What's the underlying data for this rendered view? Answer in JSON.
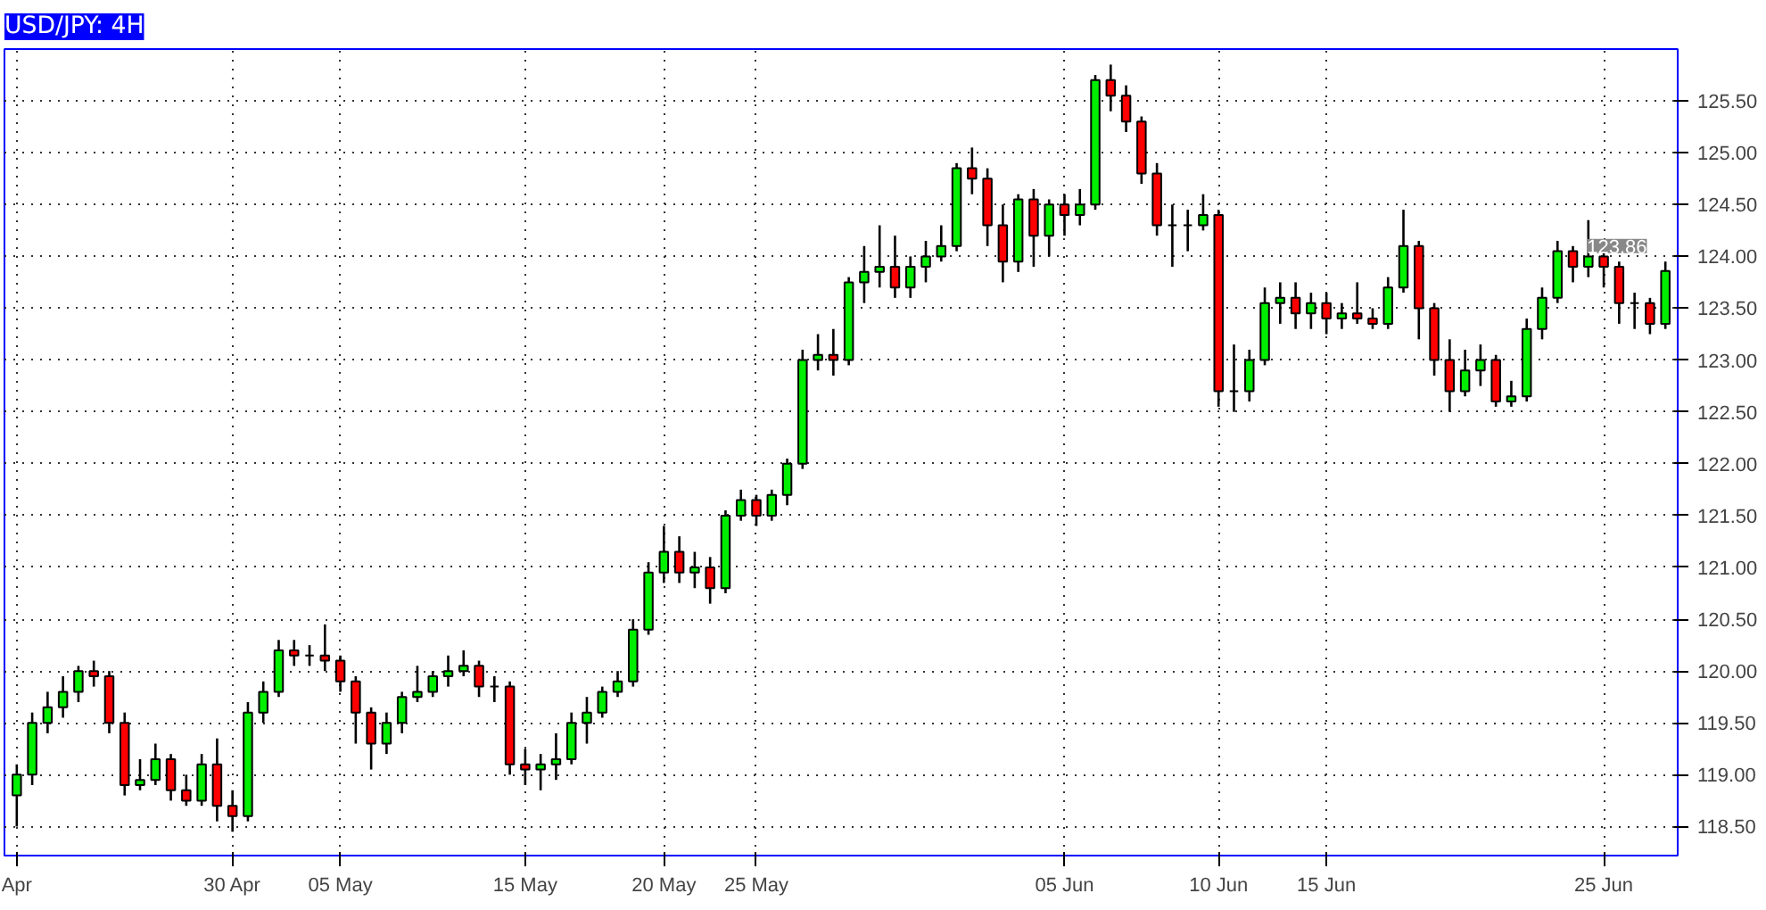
{
  "chart_data": {
    "type": "candlestick",
    "title": "USD/JPY: 4H",
    "categories": [
      "Apr",
      null,
      null,
      null,
      null,
      null,
      null,
      null,
      null,
      null,
      null,
      null,
      null,
      null,
      "30 Apr",
      null,
      null,
      null,
      null,
      null,
      null,
      "05 May",
      null,
      null,
      null,
      null,
      null,
      null,
      null,
      null,
      null,
      null,
      null,
      "15 May",
      null,
      null,
      null,
      null,
      null,
      null,
      null,
      null,
      "20 May",
      null,
      null,
      null,
      null,
      null,
      "25 May",
      null,
      null,
      null,
      null,
      null,
      null,
      null,
      null,
      null,
      null,
      null,
      null,
      null,
      null,
      null,
      null,
      null,
      null,
      null,
      "05 Jun",
      null,
      null,
      null,
      null,
      null,
      null,
      null,
      null,
      null,
      "10 Jun",
      null,
      null,
      null,
      null,
      null,
      null,
      "15 Jun",
      null,
      null,
      null,
      null,
      null,
      null,
      null,
      null,
      null,
      null,
      null,
      null,
      null,
      null,
      null,
      null,
      null,
      "25 Jun",
      null,
      null,
      null,
      null
    ],
    "ohlc": [
      [
        118.8,
        119.1,
        118.5,
        119.0
      ],
      [
        119.0,
        119.6,
        118.9,
        119.5
      ],
      [
        119.5,
        119.8,
        119.4,
        119.65
      ],
      [
        119.65,
        119.95,
        119.55,
        119.8
      ],
      [
        119.8,
        120.05,
        119.7,
        120.0
      ],
      [
        120.0,
        120.1,
        119.85,
        119.95
      ],
      [
        119.95,
        120.0,
        119.4,
        119.5
      ],
      [
        119.5,
        119.6,
        118.8,
        118.9
      ],
      [
        118.9,
        119.15,
        118.85,
        118.95
      ],
      [
        118.95,
        119.3,
        118.9,
        119.15
      ],
      [
        119.15,
        119.2,
        118.75,
        118.85
      ],
      [
        118.85,
        119.0,
        118.7,
        118.75
      ],
      [
        118.75,
        119.2,
        118.7,
        119.1
      ],
      [
        119.1,
        119.35,
        118.55,
        118.7
      ],
      [
        118.7,
        118.85,
        118.45,
        118.6
      ],
      [
        118.6,
        119.7,
        118.55,
        119.6
      ],
      [
        119.6,
        119.9,
        119.5,
        119.8
      ],
      [
        119.8,
        120.3,
        119.75,
        120.2
      ],
      [
        120.2,
        120.3,
        120.05,
        120.15
      ],
      [
        120.15,
        120.25,
        120.05,
        120.15
      ],
      [
        120.15,
        120.45,
        120.0,
        120.1
      ],
      [
        120.1,
        120.15,
        119.8,
        119.9
      ],
      [
        119.9,
        119.95,
        119.3,
        119.6
      ],
      [
        119.6,
        119.65,
        119.05,
        119.3
      ],
      [
        119.3,
        119.6,
        119.2,
        119.5
      ],
      [
        119.5,
        119.8,
        119.4,
        119.75
      ],
      [
        119.75,
        120.05,
        119.7,
        119.8
      ],
      [
        119.8,
        120.0,
        119.75,
        119.95
      ],
      [
        119.95,
        120.15,
        119.85,
        120.0
      ],
      [
        120.0,
        120.2,
        119.95,
        120.05
      ],
      [
        120.05,
        120.1,
        119.75,
        119.85
      ],
      [
        119.85,
        119.95,
        119.7,
        119.85
      ],
      [
        119.85,
        119.9,
        119.0,
        119.1
      ],
      [
        119.1,
        119.25,
        118.9,
        119.05
      ],
      [
        119.05,
        119.2,
        118.85,
        119.1
      ],
      [
        119.1,
        119.4,
        118.95,
        119.15
      ],
      [
        119.15,
        119.6,
        119.1,
        119.5
      ],
      [
        119.5,
        119.75,
        119.3,
        119.6
      ],
      [
        119.6,
        119.85,
        119.55,
        119.8
      ],
      [
        119.8,
        120.0,
        119.75,
        119.9
      ],
      [
        119.9,
        120.5,
        119.85,
        120.4
      ],
      [
        120.4,
        121.05,
        120.35,
        120.95
      ],
      [
        120.95,
        121.4,
        120.85,
        121.15
      ],
      [
        121.15,
        121.3,
        120.85,
        120.95
      ],
      [
        120.95,
        121.15,
        120.8,
        121.0
      ],
      [
        121.0,
        121.1,
        120.65,
        120.8
      ],
      [
        120.8,
        121.55,
        120.75,
        121.5
      ],
      [
        121.5,
        121.75,
        121.45,
        121.65
      ],
      [
        121.65,
        121.7,
        121.4,
        121.5
      ],
      [
        121.5,
        121.75,
        121.45,
        121.7
      ],
      [
        121.7,
        122.05,
        121.6,
        122.0
      ],
      [
        122.0,
        123.1,
        121.95,
        123.0
      ],
      [
        123.0,
        123.25,
        122.9,
        123.05
      ],
      [
        123.05,
        123.3,
        122.85,
        123.0
      ],
      [
        123.0,
        123.8,
        122.95,
        123.75
      ],
      [
        123.75,
        124.1,
        123.55,
        123.85
      ],
      [
        123.85,
        124.3,
        123.7,
        123.9
      ],
      [
        123.9,
        124.2,
        123.6,
        123.7
      ],
      [
        123.7,
        124.0,
        123.6,
        123.9
      ],
      [
        123.9,
        124.15,
        123.75,
        124.0
      ],
      [
        124.0,
        124.3,
        123.95,
        124.1
      ],
      [
        124.1,
        124.9,
        124.05,
        124.85
      ],
      [
        124.85,
        125.05,
        124.6,
        124.75
      ],
      [
        124.75,
        124.85,
        124.1,
        124.3
      ],
      [
        124.3,
        124.5,
        123.75,
        123.95
      ],
      [
        123.95,
        124.6,
        123.85,
        124.55
      ],
      [
        124.55,
        124.65,
        123.9,
        124.2
      ],
      [
        124.2,
        124.55,
        124.0,
        124.5
      ],
      [
        124.5,
        124.6,
        124.2,
        124.4
      ],
      [
        124.4,
        124.65,
        124.3,
        124.5
      ],
      [
        124.5,
        125.75,
        124.45,
        125.7
      ],
      [
        125.7,
        125.85,
        125.4,
        125.55
      ],
      [
        125.55,
        125.65,
        125.2,
        125.3
      ],
      [
        125.3,
        125.35,
        124.7,
        124.8
      ],
      [
        124.8,
        124.9,
        124.2,
        124.3
      ],
      [
        124.3,
        124.5,
        123.9,
        124.3
      ],
      [
        124.3,
        124.45,
        124.05,
        124.3
      ],
      [
        124.3,
        124.6,
        124.25,
        124.4
      ],
      [
        124.4,
        124.45,
        122.55,
        122.7
      ],
      [
        122.7,
        123.15,
        122.5,
        122.7
      ],
      [
        122.7,
        123.1,
        122.6,
        123.0
      ],
      [
        123.0,
        123.7,
        122.95,
        123.55
      ],
      [
        123.55,
        123.75,
        123.35,
        123.6
      ],
      [
        123.6,
        123.75,
        123.3,
        123.45
      ],
      [
        123.45,
        123.65,
        123.3,
        123.55
      ],
      [
        123.55,
        123.65,
        123.25,
        123.4
      ],
      [
        123.4,
        123.55,
        123.3,
        123.45
      ],
      [
        123.45,
        123.75,
        123.35,
        123.4
      ],
      [
        123.4,
        123.5,
        123.3,
        123.35
      ],
      [
        123.35,
        123.8,
        123.3,
        123.7
      ],
      [
        123.7,
        124.45,
        123.65,
        124.1
      ],
      [
        124.1,
        124.15,
        123.2,
        123.5
      ],
      [
        123.5,
        123.55,
        122.85,
        123.0
      ],
      [
        123.0,
        123.2,
        122.5,
        122.7
      ],
      [
        122.7,
        123.1,
        122.65,
        122.9
      ],
      [
        122.9,
        123.15,
        122.75,
        123.0
      ],
      [
        123.0,
        123.05,
        122.55,
        122.6
      ],
      [
        122.6,
        122.8,
        122.55,
        122.65
      ],
      [
        122.65,
        123.4,
        122.6,
        123.3
      ],
      [
        123.3,
        123.7,
        123.2,
        123.6
      ],
      [
        123.6,
        124.15,
        123.55,
        124.05
      ],
      [
        124.05,
        124.1,
        123.75,
        123.9
      ],
      [
        123.9,
        124.35,
        123.8,
        124.0
      ],
      [
        124.0,
        124.05,
        123.7,
        123.9
      ],
      [
        123.9,
        123.95,
        123.35,
        123.55
      ],
      [
        123.55,
        123.65,
        123.3,
        123.55
      ],
      [
        123.55,
        123.6,
        123.25,
        123.35
      ],
      [
        123.35,
        123.95,
        123.3,
        123.86
      ]
    ],
    "ylim": [
      118.22,
      126.0
    ],
    "yticks": [
      {
        "value": 118.5,
        "label": "118.50"
      },
      {
        "value": 119,
        "label": "119.00"
      },
      {
        "value": 119.5,
        "label": "119.50"
      },
      {
        "value": 120,
        "label": "120.00"
      },
      {
        "value": 120.5,
        "label": "120.50"
      },
      {
        "value": 121,
        "label": "121.00"
      },
      {
        "value": 121.5,
        "label": "121.50"
      },
      {
        "value": 122,
        "label": "122.00"
      },
      {
        "value": 122.5,
        "label": "122.50"
      },
      {
        "value": 123,
        "label": "123.00"
      },
      {
        "value": 123.5,
        "label": "123.50"
      },
      {
        "value": 124,
        "label": "124.00"
      },
      {
        "value": 124.5,
        "label": "124.50"
      },
      {
        "value": 125,
        "label": "125.00"
      },
      {
        "value": 125.5,
        "label": "125.50"
      }
    ],
    "grid": true,
    "annotations": [
      {
        "text": "123.86",
        "y": 123.86
      }
    ]
  }
}
